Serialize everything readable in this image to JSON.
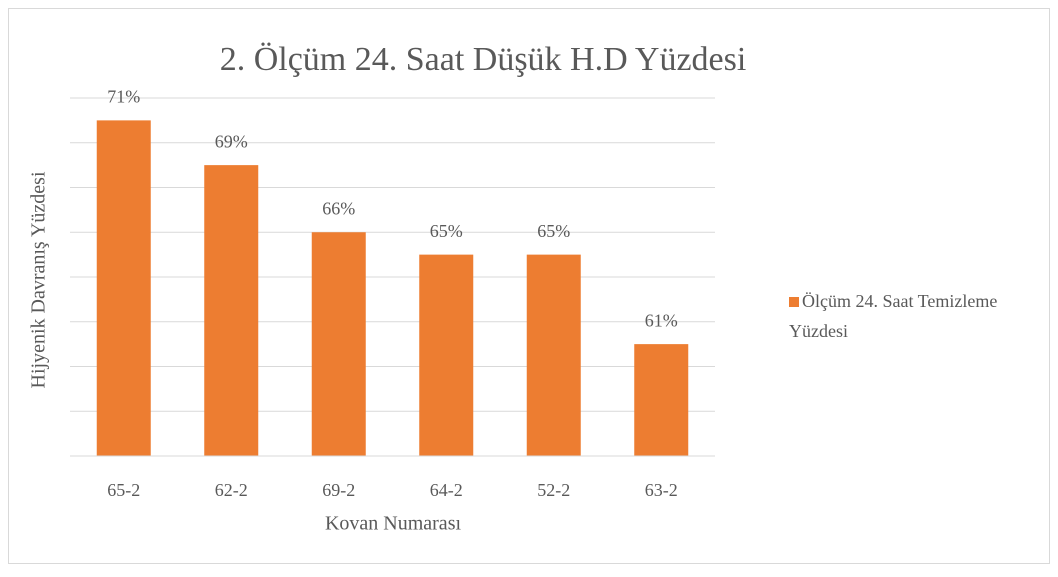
{
  "chart_data": {
    "type": "bar",
    "title": "2. Ölçüm 24. Saat Düşük H.D Yüzdesi",
    "x_label": "Kovan Numarası",
    "y_label": "Hijyenik Davranış Yüzdesi",
    "categories": [
      "65-2",
      "62-2",
      "69-2",
      "64-2",
      "52-2",
      "63-2"
    ],
    "series": [
      {
        "name": "Ölçüm 24. Saat Temizleme Yüzdesi",
        "color": "#ed7d31",
        "values": [
          71,
          69,
          66,
          65,
          65,
          61
        ],
        "value_labels": [
          "71%",
          "69%",
          "66%",
          "65%",
          "65%",
          "61%"
        ]
      }
    ],
    "ylim": [
      56,
      72
    ],
    "yticks": [
      56,
      58,
      60,
      62,
      64,
      66,
      68,
      70,
      72
    ],
    "grid": true,
    "legend": "right"
  }
}
